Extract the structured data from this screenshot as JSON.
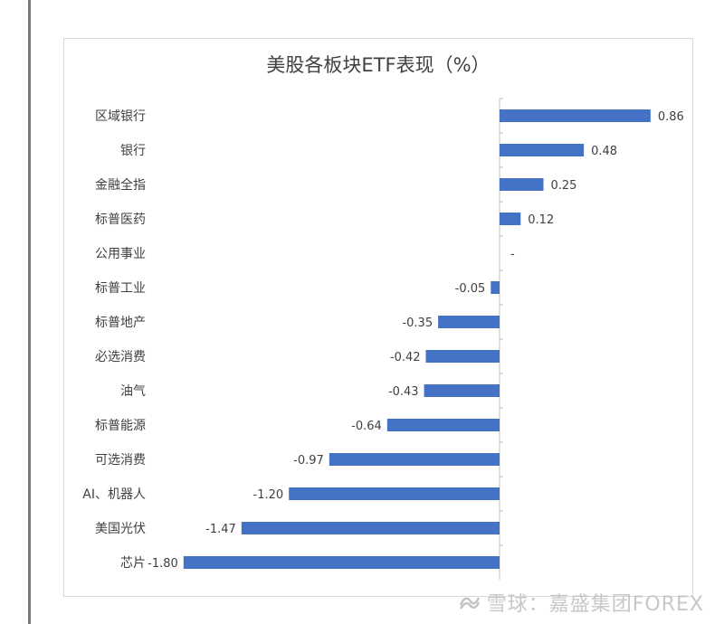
{
  "chart_data": {
    "type": "bar",
    "orientation": "horizontal",
    "title": "美股各板块ETF表现（%）",
    "categories": [
      "区域银行",
      "银行",
      "金融全指",
      "标普医药",
      "公用事业",
      "标普工业",
      "标普地产",
      "必选消费",
      "油气",
      "标普能源",
      "可选消费",
      "AI、机器人",
      "美国光伏",
      "芯片"
    ],
    "values": [
      0.86,
      0.48,
      0.25,
      0.12,
      0,
      -0.05,
      -0.35,
      -0.42,
      -0.43,
      -0.64,
      -0.97,
      -1.2,
      -1.47,
      -1.8
    ],
    "value_labels": [
      "0.86",
      "0.48",
      "0.25",
      "0.12",
      "-",
      "-0.05",
      "-0.35",
      "-0.42",
      "-0.43",
      "-0.64",
      "-0.97",
      "-1.20",
      "-1.47",
      "-1.80"
    ],
    "xlim": [
      -1.8,
      0.86
    ],
    "bar_color": "#4472C4",
    "grid": false,
    "legend": "none"
  },
  "watermark": {
    "text": "雪球：嘉盛集团FOREX",
    "logo_icon": "snowball-logo-icon"
  }
}
